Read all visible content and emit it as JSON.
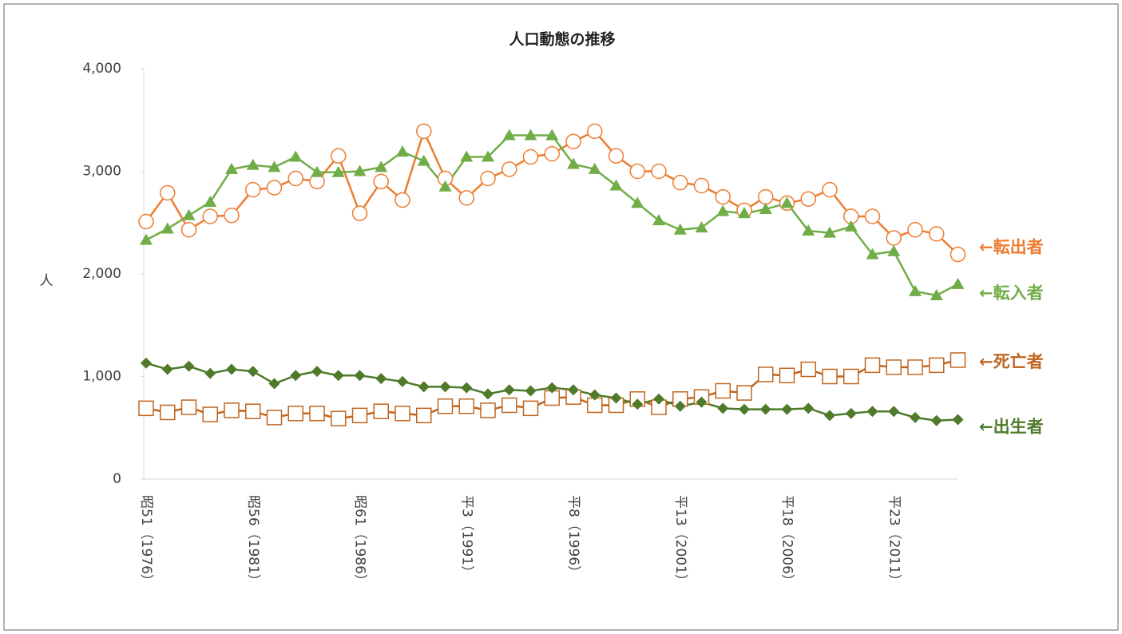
{
  "chart_data": {
    "type": "line",
    "title": "人口動態の推移",
    "y_label": "人",
    "categories": [
      "昭51（1976）",
      null,
      null,
      null,
      null,
      "昭56（1981）",
      null,
      null,
      null,
      null,
      "昭61（1986）",
      null,
      null,
      null,
      null,
      "平3（1991）",
      null,
      null,
      null,
      null,
      "平8（1996）",
      null,
      null,
      null,
      null,
      "平13（2001）",
      null,
      null,
      null,
      null,
      "平18（2006）",
      null,
      null,
      null,
      null,
      "平23（2011）",
      null,
      null,
      null
    ],
    "ylim": [
      0,
      4000
    ],
    "yticks": [
      0,
      {
        "value": 1000,
        "label": "1,000"
      },
      {
        "value": 2000,
        "label": "2,000"
      },
      {
        "value": 3000,
        "label": "3,000"
      },
      {
        "value": 4000,
        "label": "4,000"
      }
    ],
    "grid": false,
    "series": [
      {
        "name": "←転出者",
        "color": "#ed7d31",
        "marker": "circle",
        "values": [
          2510,
          2790,
          2430,
          2560,
          2570,
          2820,
          2840,
          2930,
          2900,
          3150,
          2590,
          2900,
          2720,
          3390,
          2930,
          2740,
          2930,
          3020,
          3140,
          3170,
          3290,
          3390,
          3150,
          3000,
          3000,
          2890,
          2860,
          2750,
          2620,
          2750,
          2690,
          2730,
          2820,
          2560,
          2560,
          2350,
          2430,
          2390,
          2190
        ]
      },
      {
        "name": "←転入者",
        "color": "#70ad47",
        "marker": "triangle",
        "values": [
          2330,
          2440,
          2570,
          2700,
          3020,
          3060,
          3040,
          3140,
          2990,
          2990,
          3000,
          3040,
          3190,
          3100,
          2850,
          3140,
          3140,
          3350,
          3350,
          3350,
          3070,
          3020,
          2860,
          2690,
          2520,
          2430,
          2450,
          2610,
          2590,
          2630,
          2690,
          2420,
          2400,
          2460,
          2190,
          2220,
          1830,
          1790,
          1900
        ]
      },
      {
        "name": "←死亡者",
        "color": "#c0651f",
        "marker": "square",
        "values": [
          690,
          650,
          700,
          630,
          670,
          660,
          600,
          640,
          640,
          590,
          620,
          660,
          640,
          620,
          710,
          710,
          670,
          720,
          690,
          790,
          800,
          720,
          720,
          780,
          700,
          780,
          800,
          860,
          840,
          1020,
          1010,
          1070,
          1000,
          1000,
          1110,
          1090,
          1090,
          1110,
          1160
        ]
      },
      {
        "name": "←出生者",
        "color": "#4e7a2a",
        "marker": "diamond",
        "values": [
          1130,
          1070,
          1100,
          1030,
          1070,
          1050,
          930,
          1010,
          1050,
          1010,
          1010,
          980,
          950,
          900,
          900,
          890,
          830,
          870,
          860,
          890,
          870,
          820,
          790,
          730,
          780,
          710,
          750,
          690,
          680,
          680,
          680,
          690,
          620,
          640,
          660,
          660,
          600,
          570,
          580
        ]
      }
    ]
  }
}
